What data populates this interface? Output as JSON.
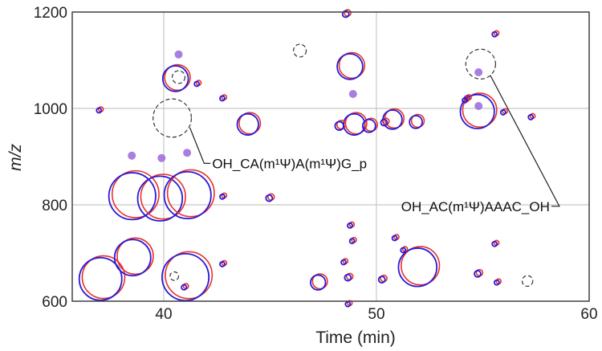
{
  "chart_data": {
    "type": "scatter",
    "title": "",
    "xlabel": "Time (min)",
    "ylabel": "m/z",
    "xlim": [
      35.7,
      60
    ],
    "ylim": [
      600,
      1200
    ],
    "xticks": [
      40,
      50,
      60
    ],
    "yticks": [
      600,
      800,
      1000,
      1200
    ],
    "grid": true,
    "colors": {
      "red": "#e8312a",
      "blue": "#2a1ad8",
      "purple": "#9a68d8",
      "dashed": "#333333",
      "grid": "#c8c8c8",
      "axis": "#444444"
    },
    "series": [
      {
        "encoding": "bubble",
        "points": [
          {
            "x": 37.1,
            "y": 648,
            "r": 1.0
          },
          {
            "x": 38.6,
            "y": 692,
            "r": 0.85
          },
          {
            "x": 38.6,
            "y": 820,
            "r": 1.1
          },
          {
            "x": 39.9,
            "y": 815,
            "r": 1.05
          },
          {
            "x": 41.2,
            "y": 822,
            "r": 1.1
          },
          {
            "x": 41.1,
            "y": 652,
            "r": 1.1
          },
          {
            "x": 40.6,
            "y": 1063,
            "r": 0.6
          },
          {
            "x": 44.0,
            "y": 968,
            "r": 0.5
          },
          {
            "x": 48.8,
            "y": 1088,
            "r": 0.6
          },
          {
            "x": 49.0,
            "y": 968,
            "r": 0.5
          },
          {
            "x": 50.8,
            "y": 978,
            "r": 0.45
          },
          {
            "x": 52.0,
            "y": 672,
            "r": 0.9
          },
          {
            "x": 54.8,
            "y": 995,
            "r": 0.8
          },
          {
            "x": 47.3,
            "y": 640,
            "r": 0.35
          },
          {
            "x": 49.7,
            "y": 965,
            "r": 0.3
          },
          {
            "x": 51.9,
            "y": 973,
            "r": 0.3
          },
          {
            "x": 48.3,
            "y": 965,
            "r": 0.2
          },
          {
            "x": 50.4,
            "y": 972,
            "r": 0.15
          },
          {
            "x": 37.0,
            "y": 997,
            "r": 0.1
          },
          {
            "x": 41.6,
            "y": 1052,
            "r": 0.1
          },
          {
            "x": 42.8,
            "y": 1022,
            "r": 0.1
          },
          {
            "x": 48.6,
            "y": 1197,
            "r": 0.15
          },
          {
            "x": 56.0,
            "y": 993,
            "r": 0.1
          },
          {
            "x": 57.3,
            "y": 983,
            "r": 0.08
          },
          {
            "x": 55.6,
            "y": 1155,
            "r": 0.08
          },
          {
            "x": 54.3,
            "y": 1022,
            "r": 0.12
          },
          {
            "x": 42.8,
            "y": 818,
            "r": 0.08
          },
          {
            "x": 45.0,
            "y": 815,
            "r": 0.15
          },
          {
            "x": 41.0,
            "y": 630,
            "r": 0.12
          },
          {
            "x": 42.8,
            "y": 678,
            "r": 0.08
          },
          {
            "x": 48.7,
            "y": 650,
            "r": 0.15
          },
          {
            "x": 48.5,
            "y": 682,
            "r": 0.1
          },
          {
            "x": 48.9,
            "y": 726,
            "r": 0.1
          },
          {
            "x": 48.8,
            "y": 758,
            "r": 0.1
          },
          {
            "x": 50.3,
            "y": 646,
            "r": 0.15
          },
          {
            "x": 50.9,
            "y": 732,
            "r": 0.1
          },
          {
            "x": 51.3,
            "y": 707,
            "r": 0.08
          },
          {
            "x": 54.8,
            "y": 658,
            "r": 0.15
          },
          {
            "x": 55.7,
            "y": 640,
            "r": 0.1
          },
          {
            "x": 55.6,
            "y": 720,
            "r": 0.08
          },
          {
            "x": 54.2,
            "y": 1018,
            "r": 0.1
          },
          {
            "x": 48.7,
            "y": 595,
            "r": 0.1
          }
        ]
      },
      {
        "encoding": "filled-markers",
        "points": [
          {
            "x": 38.5,
            "y": 902
          },
          {
            "x": 39.9,
            "y": 897
          },
          {
            "x": 41.1,
            "y": 908
          },
          {
            "x": 40.7,
            "y": 1112
          },
          {
            "x": 48.9,
            "y": 1030
          },
          {
            "x": 54.8,
            "y": 1075
          },
          {
            "x": 54.8,
            "y": 1005
          }
        ]
      },
      {
        "encoding": "dashed-circle",
        "points": [
          {
            "x": 40.4,
            "y": 980,
            "r": 0.9
          },
          {
            "x": 40.7,
            "y": 1065,
            "r": 0.3
          },
          {
            "x": 54.9,
            "y": 1092,
            "r": 0.7
          },
          {
            "x": 46.4,
            "y": 1120,
            "r": 0.3
          },
          {
            "x": 57.1,
            "y": 642,
            "r": 0.25
          },
          {
            "x": 40.5,
            "y": 652,
            "r": 0.2
          }
        ]
      }
    ],
    "annotations": [
      {
        "text": "OH_CA(m¹Ψ)A(m¹Ψ)G_p",
        "target": {
          "x": 40.4,
          "y": 980
        },
        "at": {
          "x": 41.9,
          "y": 886
        }
      },
      {
        "text": "OH_AC(m¹Ψ)AAAC_OH",
        "target": {
          "x": 54.9,
          "y": 1092
        },
        "at": {
          "x": 58.6,
          "y": 797
        }
      }
    ]
  }
}
